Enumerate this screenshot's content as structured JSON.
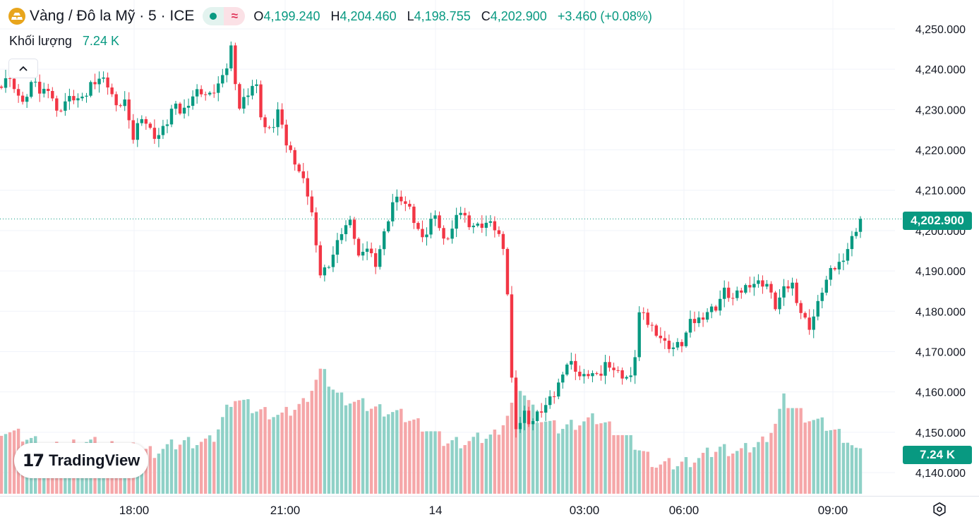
{
  "header": {
    "symbol_title": "Vàng / Đô la Mỹ · 5 · ICE",
    "o_label": "O",
    "o_value": "4,199.240",
    "h_label": "H",
    "h_value": "4,204.460",
    "l_label": "L",
    "l_value": "4,198.755",
    "c_label": "C",
    "c_value": "4,202.900",
    "change": "+3.460 (+0.08%)",
    "wave_glyph": "≈"
  },
  "volume_row": {
    "label": "Khối lượng",
    "value": "7.24 K"
  },
  "branding": {
    "logo_mark": "17",
    "name": "TradingView"
  },
  "colors": {
    "up": "#089981",
    "down": "#f23645",
    "up_volume": "#8fd1c7",
    "down_volume": "#f5a6a8",
    "grid": "#f0f3fa"
  },
  "chart_data": {
    "type": "candlestick",
    "title": "Vàng / Đô la Mỹ · 5 · ICE",
    "price_axis": {
      "ticks": [
        "4,250.000",
        "4,240.000",
        "4,230.000",
        "4,220.000",
        "4,210.000",
        "4,200.000",
        "4,190.000",
        "4,180.000",
        "4,170.000",
        "4,160.000",
        "4,150.000",
        "4,140.000"
      ],
      "range": [
        4136,
        4252
      ]
    },
    "time_axis": {
      "ticks": [
        "18:00",
        "21:00",
        "14",
        "03:00",
        "06:00",
        "09:00"
      ]
    },
    "current_price": "4,202.900",
    "current_price_value": 4202.9,
    "current_volume": "7.24 K",
    "volume_range_k": [
      0,
      50
    ],
    "price_path": [
      [
        0,
        4236
      ],
      [
        8,
        4238
      ],
      [
        20,
        4236
      ],
      [
        32,
        4231
      ],
      [
        45,
        4237
      ],
      [
        58,
        4234
      ],
      [
        70,
        4236
      ],
      [
        80,
        4229
      ],
      [
        92,
        4232
      ],
      [
        105,
        4233
      ],
      [
        118,
        4232
      ],
      [
        130,
        4237
      ],
      [
        142,
        4238
      ],
      [
        155,
        4236
      ],
      [
        165,
        4230
      ],
      [
        176,
        4233
      ],
      [
        187,
        4222
      ],
      [
        200,
        4229
      ],
      [
        212,
        4225
      ],
      [
        222,
        4223
      ],
      [
        235,
        4226
      ],
      [
        245,
        4231
      ],
      [
        258,
        4229
      ],
      [
        270,
        4233
      ],
      [
        283,
        4235
      ],
      [
        296,
        4233
      ],
      [
        308,
        4236
      ],
      [
        318,
        4238
      ],
      [
        328,
        4246
      ],
      [
        338,
        4230
      ],
      [
        350,
        4234
      ],
      [
        362,
        4237
      ],
      [
        372,
        4226
      ],
      [
        384,
        4224
      ],
      [
        396,
        4231
      ],
      [
        406,
        4221
      ],
      [
        416,
        4218
      ],
      [
        430,
        4212
      ],
      [
        440,
        4207
      ],
      [
        452,
        4189
      ],
      [
        463,
        4191
      ],
      [
        474,
        4195
      ],
      [
        486,
        4201
      ],
      [
        498,
        4202
      ],
      [
        510,
        4192
      ],
      [
        520,
        4196
      ],
      [
        532,
        4192
      ],
      [
        544,
        4199
      ],
      [
        556,
        4207
      ],
      [
        568,
        4208
      ],
      [
        580,
        4205
      ],
      [
        592,
        4200
      ],
      [
        604,
        4199
      ],
      [
        616,
        4205
      ],
      [
        628,
        4197
      ],
      [
        640,
        4200
      ],
      [
        652,
        4205
      ],
      [
        664,
        4202
      ],
      [
        676,
        4201
      ],
      [
        688,
        4202
      ],
      [
        700,
        4201
      ],
      [
        710,
        4198
      ],
      [
        718,
        4188
      ],
      [
        725,
        4163
      ],
      [
        732,
        4150
      ],
      [
        742,
        4155
      ],
      [
        752,
        4152
      ],
      [
        764,
        4155
      ],
      [
        776,
        4157
      ],
      [
        788,
        4160
      ],
      [
        800,
        4167
      ],
      [
        812,
        4167
      ],
      [
        824,
        4163
      ],
      [
        836,
        4165
      ],
      [
        848,
        4163
      ],
      [
        860,
        4168
      ],
      [
        872,
        4165
      ],
      [
        884,
        4164
      ],
      [
        896,
        4163
      ],
      [
        906,
        4180
      ],
      [
        918,
        4177
      ],
      [
        930,
        4175
      ],
      [
        942,
        4172
      ],
      [
        954,
        4171
      ],
      [
        966,
        4172
      ],
      [
        978,
        4177
      ],
      [
        990,
        4178
      ],
      [
        1002,
        4180
      ],
      [
        1014,
        4181
      ],
      [
        1026,
        4185
      ],
      [
        1038,
        4183
      ],
      [
        1050,
        4185
      ],
      [
        1062,
        4187
      ],
      [
        1074,
        4187
      ],
      [
        1086,
        4187
      ],
      [
        1098,
        4181
      ],
      [
        1110,
        4185
      ],
      [
        1122,
        4187
      ],
      [
        1134,
        4180
      ],
      [
        1146,
        4176
      ],
      [
        1156,
        4180
      ],
      [
        1166,
        4186
      ],
      [
        1178,
        4190
      ],
      [
        1190,
        4192
      ],
      [
        1202,
        4196
      ],
      [
        1212,
        4200
      ],
      [
        1217,
        4202.9
      ]
    ],
    "volume_path": [
      [
        0,
        20
      ],
      [
        40,
        17
      ],
      [
        80,
        14
      ],
      [
        120,
        16
      ],
      [
        150,
        15
      ],
      [
        180,
        14
      ],
      [
        220,
        13
      ],
      [
        260,
        16
      ],
      [
        300,
        16
      ],
      [
        330,
        30
      ],
      [
        360,
        26
      ],
      [
        400,
        24
      ],
      [
        430,
        28
      ],
      [
        455,
        38
      ],
      [
        480,
        30
      ],
      [
        520,
        27
      ],
      [
        560,
        25
      ],
      [
        600,
        21
      ],
      [
        630,
        16
      ],
      [
        660,
        16
      ],
      [
        700,
        18
      ],
      [
        722,
        25
      ],
      [
        735,
        34
      ],
      [
        760,
        24
      ],
      [
        790,
        20
      ],
      [
        820,
        22
      ],
      [
        845,
        23
      ],
      [
        870,
        20
      ],
      [
        900,
        15
      ],
      [
        930,
        9
      ],
      [
        960,
        9
      ],
      [
        990,
        11
      ],
      [
        1020,
        14
      ],
      [
        1050,
        13
      ],
      [
        1080,
        16
      ],
      [
        1100,
        22
      ],
      [
        1110,
        29
      ],
      [
        1140,
        24
      ],
      [
        1170,
        21
      ],
      [
        1200,
        17
      ],
      [
        1217,
        12
      ]
    ]
  }
}
